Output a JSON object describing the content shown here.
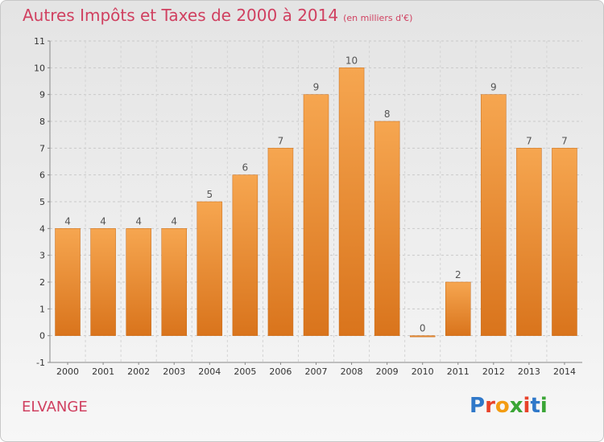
{
  "header": {
    "title": "Autres Impôts et Taxes de 2000 à 2014",
    "unit": "(en milliers d'€)"
  },
  "footer": {
    "commune": "ELVANGE",
    "logo_letters": [
      "P",
      "r",
      "o",
      "x",
      "i",
      "t",
      "i"
    ],
    "logo_colors": [
      "#2f78c9",
      "#e8422a",
      "#f39c12",
      "#3aa535",
      "#e8422a",
      "#2f78c9",
      "#3aa535"
    ]
  },
  "colors": {
    "bar_light": "#f6a650",
    "bar_dark": "#d9741c",
    "title": "#d04060"
  },
  "chart_data": {
    "type": "bar",
    "categories": [
      "2000",
      "2001",
      "2002",
      "2003",
      "2004",
      "2005",
      "2006",
      "2007",
      "2008",
      "2009",
      "2010",
      "2011",
      "2012",
      "2013",
      "2014"
    ],
    "values": [
      4,
      4,
      4,
      4,
      5,
      6,
      7,
      9,
      10,
      8,
      0,
      2,
      9,
      7,
      7
    ],
    "data_labels": [
      "4",
      "4",
      "4",
      "4",
      "5",
      "6",
      "7",
      "9",
      "10",
      "8",
      "0",
      "2",
      "9",
      "7",
      "7"
    ],
    "ylim": [
      -1,
      11
    ],
    "yticks": [
      "-1",
      "0",
      "1",
      "2",
      "3",
      "4",
      "5",
      "6",
      "7",
      "8",
      "9",
      "10",
      "11"
    ],
    "grid": true
  }
}
